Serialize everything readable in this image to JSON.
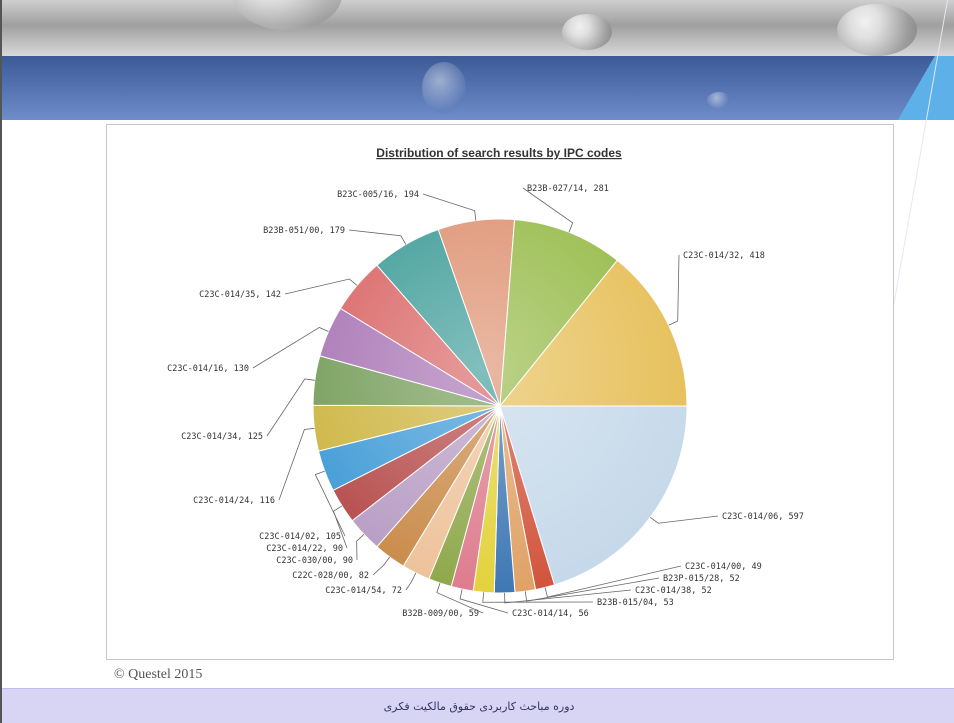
{
  "footer_text": "دوره مباحث کاربردی حقوق مالکیت فکری",
  "copyright": "© Questel 2015",
  "chart_data": {
    "type": "pie",
    "title": "Distribution of search results by IPC codes",
    "slices": [
      {
        "label": "C23C-014/06",
        "value": 597,
        "color": "#c6d9ea"
      },
      {
        "label": "C23C-014/00",
        "value": 49,
        "color": "#d2553d"
      },
      {
        "label": "B23P-015/28",
        "value": 52,
        "color": "#e0a266"
      },
      {
        "label": "C23C-014/38",
        "value": 52,
        "color": "#3f78b4"
      },
      {
        "label": "B23B-015/04",
        "value": 53,
        "color": "#e3d23c"
      },
      {
        "label": "C23C-014/14",
        "value": 56,
        "color": "#dd7c8e"
      },
      {
        "label": "B32B-009/00",
        "value": 59,
        "color": "#8ea84a"
      },
      {
        "label": "C23C-014/54",
        "value": 72,
        "color": "#eec29a"
      },
      {
        "label": "C22C-028/00",
        "value": 82,
        "color": "#c98a48"
      },
      {
        "label": "C23C-030/00",
        "value": 90,
        "color": "#b79cc4"
      },
      {
        "label": "C23C-014/22",
        "value": 90,
        "color": "#b64a4a"
      },
      {
        "label": "C23C-014/02",
        "value": 105,
        "color": "#3f9ad6"
      },
      {
        "label": "C23C-014/24",
        "value": 116,
        "color": "#cdb43f"
      },
      {
        "label": "C23C-014/34",
        "value": 125,
        "color": "#749c58"
      },
      {
        "label": "C23C-014/16",
        "value": 130,
        "color": "#a874b4"
      },
      {
        "label": "C23C-014/35",
        "value": 142,
        "color": "#d96464"
      },
      {
        "label": "B23B-051/00",
        "value": 179,
        "color": "#3e9c98"
      },
      {
        "label": "B23C-005/16",
        "value": 194,
        "color": "#de9272"
      },
      {
        "label": "B23B-027/14",
        "value": 281,
        "color": "#97bb4a"
      },
      {
        "label": "C23C-014/32",
        "value": 418,
        "color": "#e6bf58"
      }
    ]
  }
}
